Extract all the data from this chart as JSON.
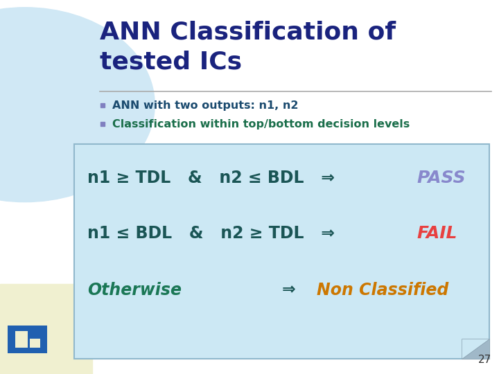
{
  "title_line1": "ANN Classification of",
  "title_line2": "tested ICs",
  "title_color": "#1a237e",
  "bullet1": "ANN with two outputs: n1, n2",
  "bullet2": "Classification within top/bottom decision levels",
  "bullet_color": "#1a4a6e",
  "bullet2_color": "#1a6e4a",
  "bullet_marker_color": "#8080c0",
  "bg_color": "#ffffff",
  "top_left_circle_color": "#d0e8f5",
  "bottom_left_rect_color": "#f0f0d0",
  "box_bg_color": "#cce8f4",
  "box_border_color": "#90b8cc",
  "line1_main_color": "#1a5555",
  "line1_result_color": "#8888cc",
  "line2_main_color": "#1a5555",
  "line2_result_color": "#e84040",
  "line3_main_color": "#1a7755",
  "line3_arrow_color": "#1a5555",
  "line3_result_color": "#cc7700",
  "page_number": "27",
  "page_number_color": "#333333",
  "divider_color": "#aaaaaa"
}
